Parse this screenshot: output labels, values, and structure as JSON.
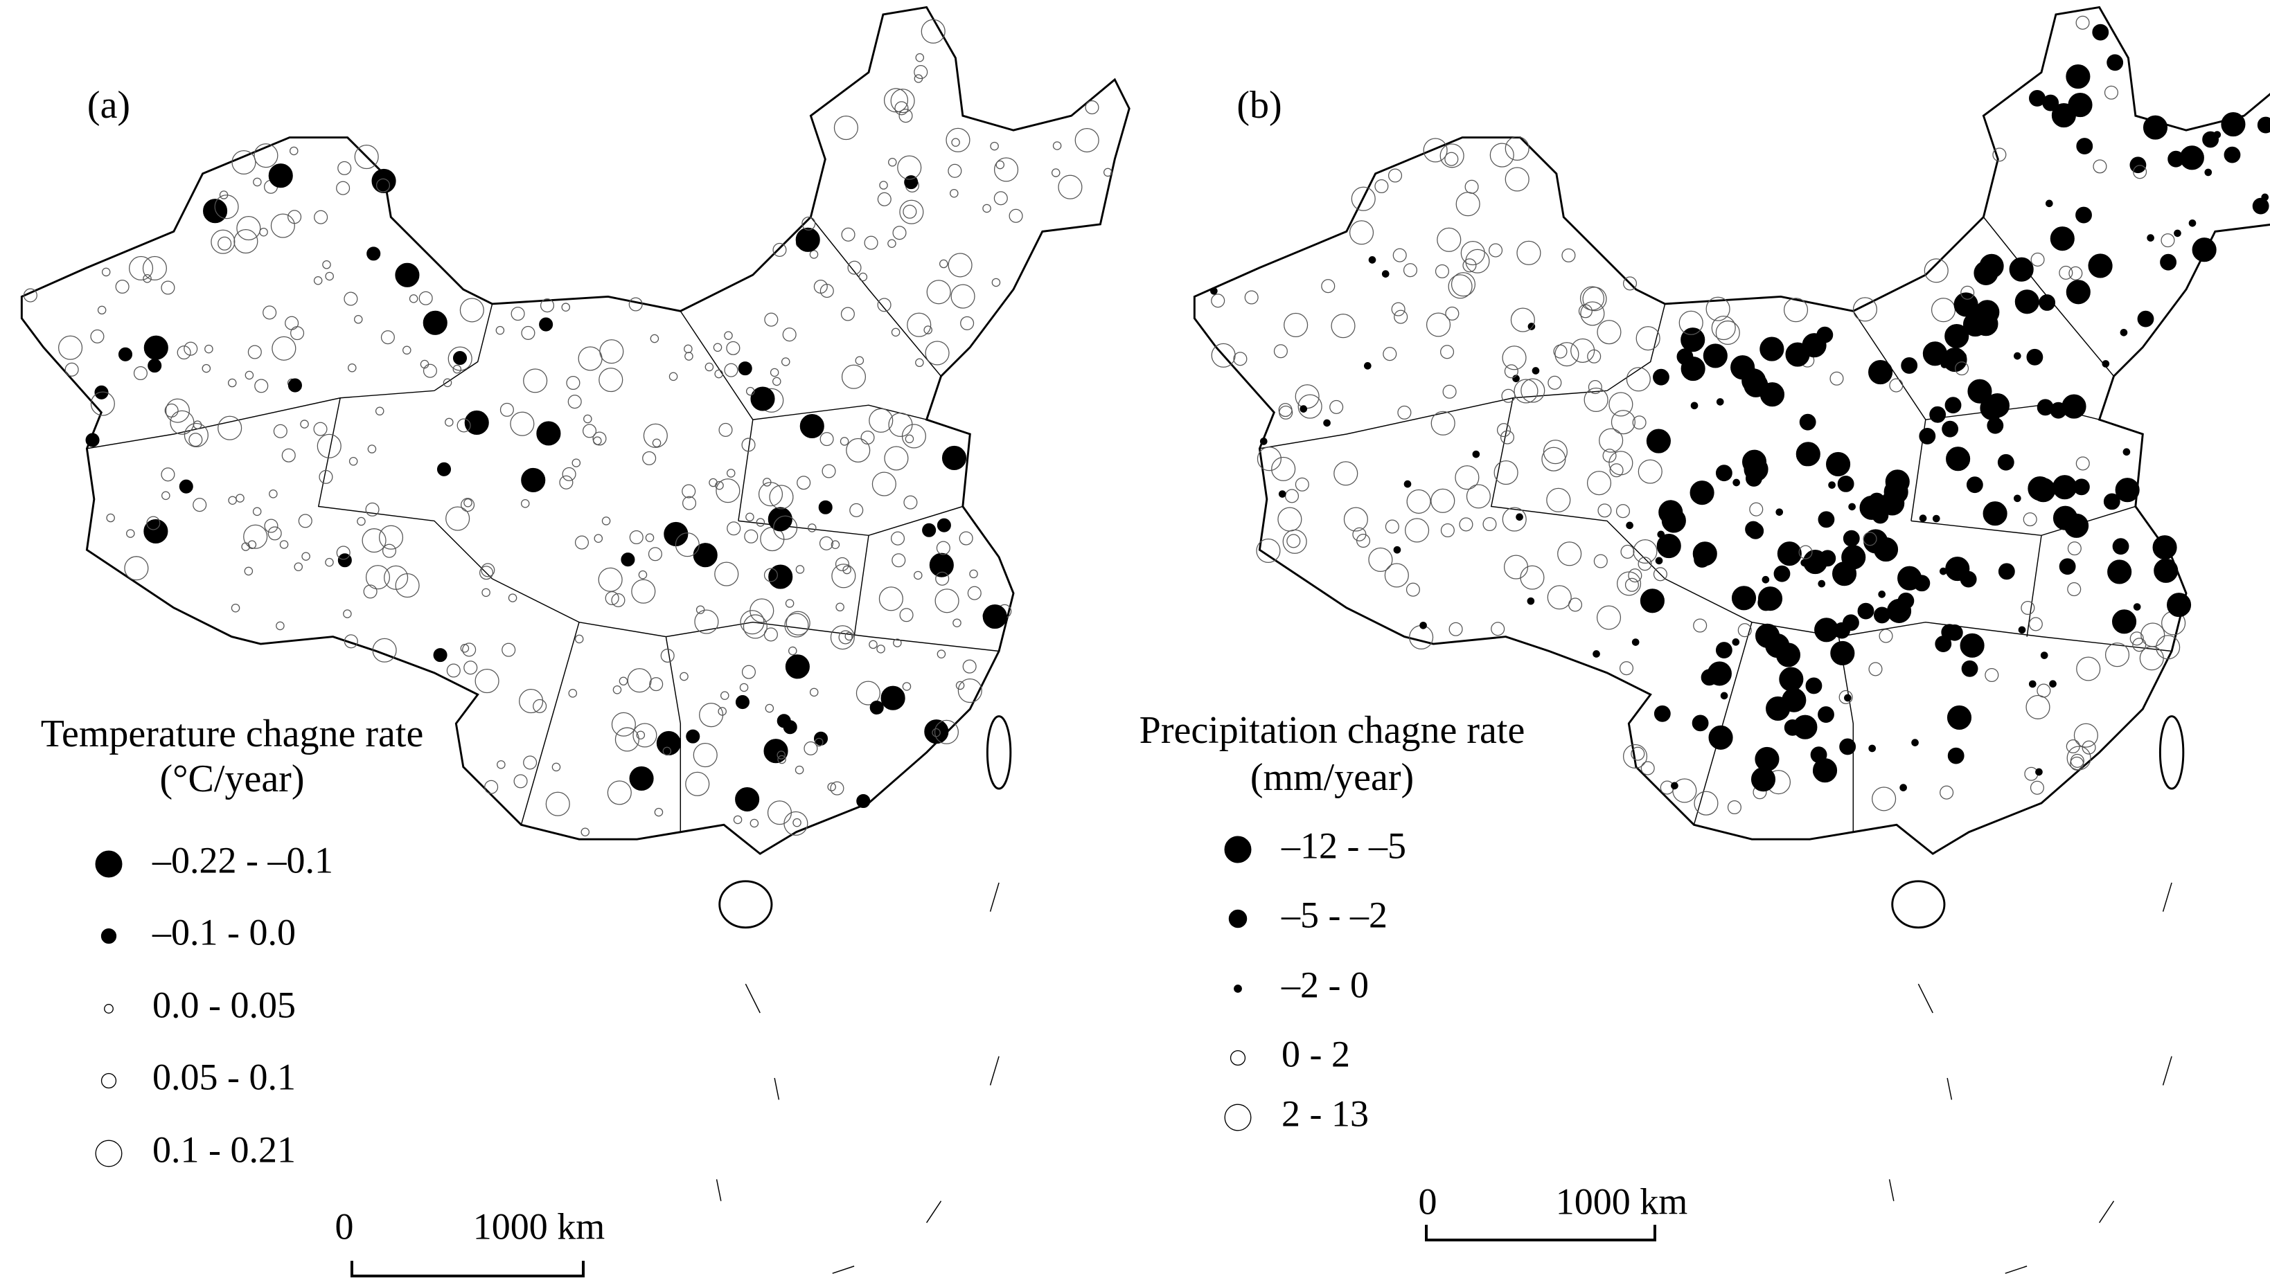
{
  "panels": [
    {
      "label": "(a)",
      "legend_title": [
        "Temperature chagne rate",
        "(°C/year)"
      ],
      "legend_items": [
        "–0.22 - –0.1",
        "–0.1 - 0.0",
        "0.0 - 0.05",
        "0.05 - 0.1",
        "0.1 - 0.21"
      ],
      "scale_labels": [
        "0",
        "1000 km"
      ]
    },
    {
      "label": "(b)",
      "legend_title": [
        "Precipitation chagne rate",
        "(mm/year)"
      ],
      "legend_items": [
        "–12 - –5",
        "–5 - –2",
        "–2 - 0",
        "0 - 2",
        "2 - 13"
      ],
      "scale_labels": [
        "0",
        "1000 km"
      ]
    }
  ]
}
